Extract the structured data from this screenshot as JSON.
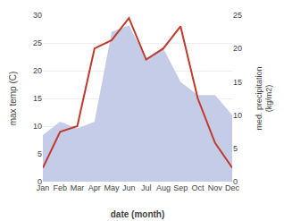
{
  "chart_data": {
    "type": "line",
    "categories": [
      "Jan",
      "Feb",
      "Mar",
      "Apr",
      "May",
      "Jun",
      "Jul",
      "Aug",
      "Sep",
      "Oct",
      "Nov",
      "Dec"
    ],
    "xlabel": "date (month)",
    "ylabel": "max temp (C)",
    "y2label": "med. precipitation\n(kg/m2)",
    "series": [
      {
        "type": "area",
        "axis": "y2",
        "color": "#c5cce8",
        "values": [
          7.0,
          9.0,
          8.0,
          9.0,
          22.5,
          23.5,
          18.5,
          20.0,
          15.0,
          13.0,
          13.0,
          10.0
        ]
      },
      {
        "type": "line",
        "color": "#c0392b",
        "values": [
          2.5,
          9.0,
          10.0,
          24.0,
          25.5,
          29.5,
          22.0,
          24.0,
          28.0,
          15.0,
          7.0,
          2.5
        ]
      }
    ],
    "ylim": [
      0,
      30
    ],
    "yticks": [
      0,
      5,
      10,
      15,
      20,
      25,
      30
    ],
    "y2lim": [
      0,
      25
    ],
    "y2ticks": [
      0,
      5,
      10,
      15,
      20,
      25
    ],
    "grid": true
  }
}
